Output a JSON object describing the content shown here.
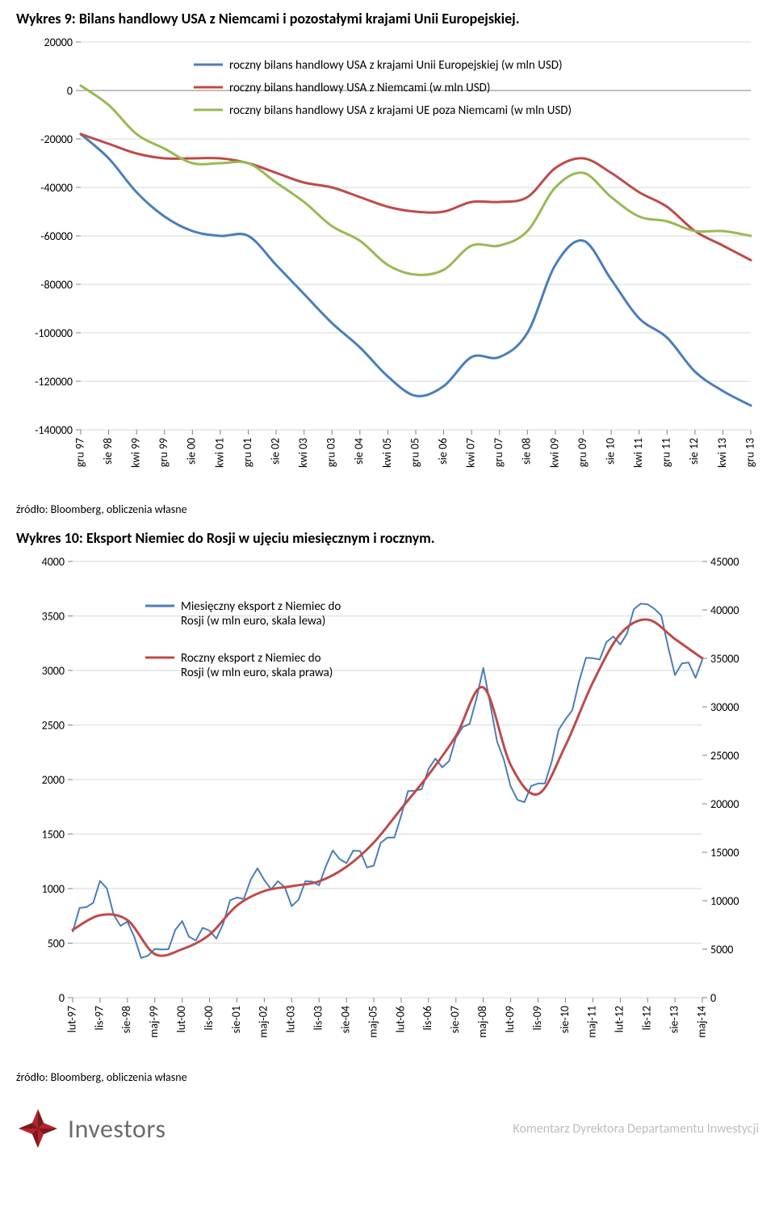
{
  "chart9": {
    "title": "Wykres 9: Bilans handlowy USA z Niemcami i pozostałymi krajami Unii Europejskiej.",
    "type": "line",
    "background_color": "#ffffff",
    "plot_border_color": "#808080",
    "grid_color": "#d9d9d9",
    "tick_color": "#808080",
    "line_width": 3,
    "label_fontsize": 14,
    "ylim": [
      -140000,
      20000
    ],
    "ytick_step": 20000,
    "yticks": [
      "20000",
      "0",
      "-20000",
      "-40000",
      "-60000",
      "-80000",
      "-100000",
      "-120000",
      "-140000"
    ],
    "x_categories": [
      "gru 97",
      "sie 98",
      "kwi 99",
      "gru 99",
      "sie 00",
      "kwi 01",
      "gru 01",
      "sie 02",
      "kwi 03",
      "gru 03",
      "sie 04",
      "kwi 05",
      "gru 05",
      "sie 06",
      "kwi 07",
      "gru 07",
      "sie 08",
      "kwi 09",
      "gru 09",
      "sie 10",
      "kwi 11",
      "gru 11",
      "sie 12",
      "kwi 13",
      "gru 13"
    ],
    "series": [
      {
        "name": "roczny bilans handlowy USA z krajami Unii Europejskiej (w mln USD)",
        "color": "#4a7ebb",
        "values": [
          -18000,
          -28000,
          -42000,
          -52000,
          -58000,
          -60000,
          -60000,
          -72000,
          -84000,
          -96000,
          -106000,
          -118000,
          -126000,
          -122000,
          -110000,
          -110000,
          -100000,
          -72000,
          -62000,
          -78000,
          -94000,
          -102000,
          -116000,
          -124000,
          -130000
        ]
      },
      {
        "name": "roczny bilans handlowy USA z Niemcami (w mln USD)",
        "color": "#be4b48",
        "values": [
          -18000,
          -22000,
          -26000,
          -28000,
          -28000,
          -28000,
          -30000,
          -34000,
          -38000,
          -40000,
          -44000,
          -48000,
          -50000,
          -50000,
          -46000,
          -46000,
          -44000,
          -32000,
          -28000,
          -34000,
          -42000,
          -48000,
          -58000,
          -64000,
          -70000
        ]
      },
      {
        "name": "roczny bilans handlowy USA z krajami UE poza Niemcami (w mln USD)",
        "color": "#98b954",
        "values": [
          2000,
          -6000,
          -18000,
          -24000,
          -30000,
          -30000,
          -30000,
          -38000,
          -46000,
          -56000,
          -62000,
          -72000,
          -76000,
          -74000,
          -64000,
          -64000,
          -58000,
          -40000,
          -34000,
          -44000,
          -52000,
          -54000,
          -58000,
          -58000,
          -60000
        ]
      }
    ],
    "legend_position": "inside-top-right",
    "source": "źródło: Bloomberg, obliczenia własne"
  },
  "chart10": {
    "title": "Wykres 10: Eksport Niemiec do Rosji w ujęciu miesięcznym i rocznym.",
    "type": "line-dual-axis",
    "background_color": "#ffffff",
    "plot_border_color": "#808080",
    "grid_color": "#d9d9d9",
    "tick_color": "#808080",
    "line_width_primary": 2,
    "line_width_secondary": 3,
    "label_fontsize": 14,
    "ylim_left": [
      0,
      4000
    ],
    "ytick_step_left": 500,
    "yticks_left": [
      "4000",
      "3500",
      "3000",
      "2500",
      "2000",
      "1500",
      "1000",
      "500",
      "0"
    ],
    "ylim_right": [
      0,
      45000
    ],
    "ytick_step_right": 5000,
    "yticks_right": [
      "45000",
      "40000",
      "35000",
      "30000",
      "25000",
      "20000",
      "15000",
      "10000",
      "5000",
      "0"
    ],
    "x_categories": [
      "lut-97",
      "lis-97",
      "sie-98",
      "maj-99",
      "lut-00",
      "lis-00",
      "sie-01",
      "maj-02",
      "lut-03",
      "lis-03",
      "sie-04",
      "maj-05",
      "lut-06",
      "lis-06",
      "sie-07",
      "maj-08",
      "lut-09",
      "lis-09",
      "sie-10",
      "maj-11",
      "lut-12",
      "lis-12",
      "sie-13",
      "maj-14"
    ],
    "series": [
      {
        "name": "Miesięczny eksport z Niemiec do Rosji (w mln euro, skala lewa)",
        "axis": "left",
        "color": "#4a7ebb",
        "values": [
          600,
          950,
          700,
          350,
          550,
          650,
          900,
          1050,
          1000,
          1100,
          1250,
          1350,
          1650,
          2000,
          2400,
          2900,
          1800,
          2000,
          2500,
          3100,
          3400,
          3650,
          3000,
          3100
        ]
      },
      {
        "name": "Roczny eksport z Niemiec do Rosji (w mln euro, skala prawa)",
        "axis": "right",
        "color": "#be4b48",
        "values": [
          7000,
          8500,
          8000,
          4500,
          5000,
          6500,
          9500,
          11000,
          11500,
          12000,
          13500,
          16000,
          19500,
          23000,
          27000,
          32000,
          24000,
          21000,
          26000,
          32500,
          37500,
          39000,
          37000,
          35000
        ]
      }
    ],
    "legend_position": "inside-upper-left",
    "source": "źródło: Bloomberg, obliczenia własne"
  },
  "footer": {
    "logo_text": "Investors",
    "logo_mark_colors": {
      "primary": "#b8232a",
      "shadow": "#7a1a1f"
    },
    "right_text": "Komentarz Dyrektora Departamentu Inwestycji"
  }
}
